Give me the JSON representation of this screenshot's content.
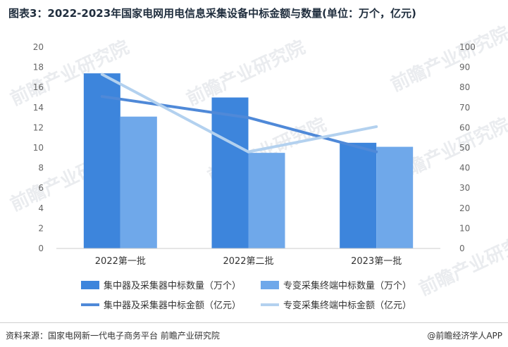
{
  "title": "图表3：2022-2023年国家电网用电信息采集设备中标金额与数量(单位：万个，亿元)",
  "watermark_text": "前瞻产业研究院",
  "chart_data": {
    "type": "bar",
    "categories": [
      "2022第一批",
      "2022第二批",
      "2023第一批"
    ],
    "y_left": {
      "min": 0,
      "max": 20,
      "ticks": [
        0,
        2,
        4,
        6,
        8,
        10,
        12,
        14,
        16,
        18,
        20
      ]
    },
    "y_right": {
      "min": 0,
      "max": 100,
      "ticks": [
        0,
        10,
        20,
        30,
        40,
        50,
        60,
        70,
        80,
        90,
        100
      ]
    },
    "series": [
      {
        "name": "集中器及采集器中标数量（万个）",
        "kind": "bar",
        "axis": "left",
        "color": "#3d85dc",
        "values": [
          17.4,
          15.0,
          10.5
        ]
      },
      {
        "name": "专变采集终端中标数量（万个）",
        "kind": "bar",
        "axis": "left",
        "color": "#6fa8ea",
        "values": [
          13.1,
          9.5,
          10.1
        ]
      },
      {
        "name": "集中器及采集器中标金额（亿元）",
        "kind": "line",
        "axis": "right",
        "color": "#4f89d8",
        "values": [
          75.5,
          65.0,
          48.0
        ]
      },
      {
        "name": "专变采集终端中标金额（亿元）",
        "kind": "line",
        "axis": "right",
        "color": "#b3d1ef",
        "values": [
          86.5,
          48.0,
          60.5
        ]
      }
    ],
    "grid": false,
    "legend_position": "bottom"
  },
  "footer": {
    "source": "资料来源：国家电网新一代电子商务平台 前瞻产业研究院",
    "brand": "@前瞻经济学人APP"
  }
}
